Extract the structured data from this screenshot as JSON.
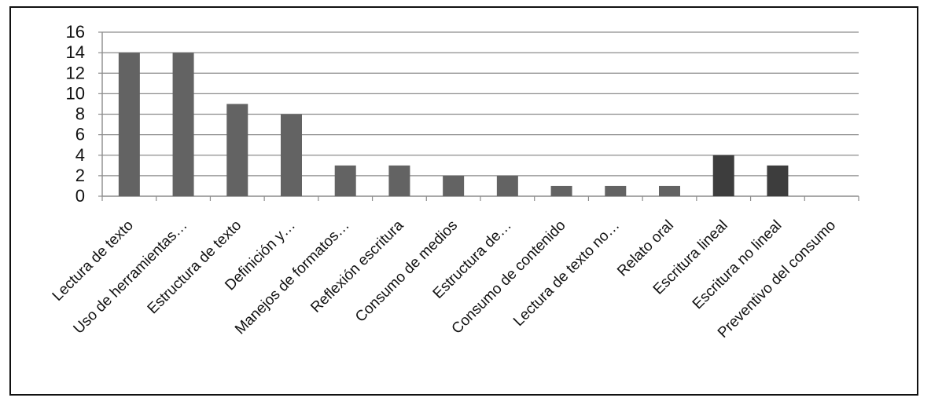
{
  "chart_data": {
    "type": "bar",
    "title": "",
    "xlabel": "",
    "ylabel": "",
    "ylim": [
      0,
      16
    ],
    "yticks": [
      0,
      2,
      4,
      6,
      8,
      10,
      12,
      14,
      16
    ],
    "grid": true,
    "legend": "none",
    "categories": [
      "Lectura de texto",
      "Uso de herramientas…",
      "Estructura de texto",
      "Definición y…",
      "Manejos de formatos…",
      "Reflexión escritura",
      "Consumo de medios",
      "Estructura de…",
      "Consumo de contenido",
      "Lectura de texto no…",
      "Relato oral",
      "Escritura lineal",
      "Escritura no lineal",
      "Preventivo del consumo"
    ],
    "values": [
      14,
      14,
      9,
      8,
      3,
      3,
      2,
      2,
      1,
      1,
      1,
      4,
      3,
      0
    ],
    "bar_colors": [
      "#636363",
      "#636363",
      "#636363",
      "#636363",
      "#636363",
      "#636363",
      "#636363",
      "#636363",
      "#636363",
      "#636363",
      "#636363",
      "#3d3d3d",
      "#3d3d3d",
      "#636363"
    ]
  }
}
